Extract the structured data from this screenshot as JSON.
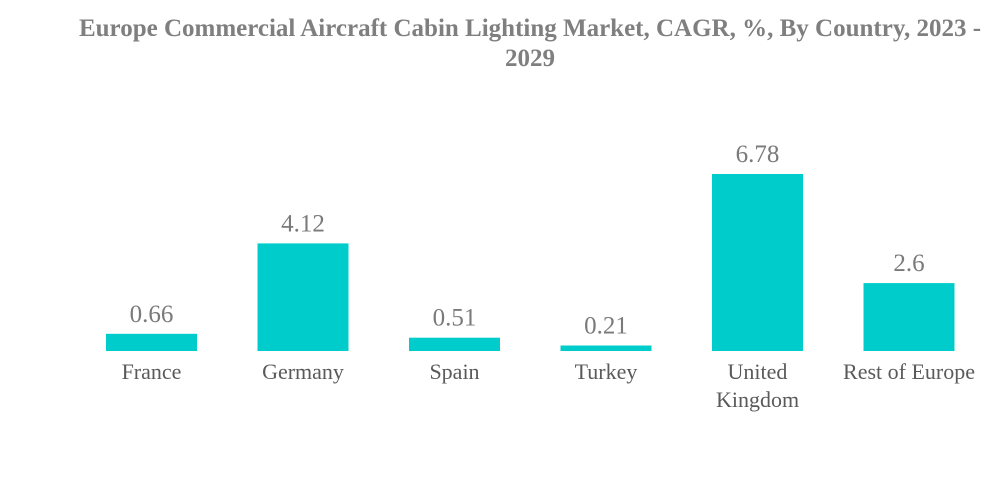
{
  "chart_data": {
    "type": "bar",
    "title": "Europe Commercial Aircraft Cabin Lighting Market, CAGR, %, By Country, 2023 - 2029",
    "categories": [
      [
        "France"
      ],
      [
        "Germany"
      ],
      [
        "Spain"
      ],
      [
        "Turkey"
      ],
      [
        "United",
        "Kingdom"
      ],
      [
        "Rest of Europe"
      ]
    ],
    "values": [
      0.66,
      4.12,
      0.51,
      0.21,
      6.78,
      2.6
    ],
    "value_labels": [
      "0.66",
      "4.12",
      "0.51",
      "0.21",
      "6.78",
      "2.6"
    ],
    "xlabel": "",
    "ylabel": "",
    "ylim": [
      0,
      6.78
    ],
    "grid": false,
    "legend": "none",
    "bar_color": "#00cccc"
  }
}
